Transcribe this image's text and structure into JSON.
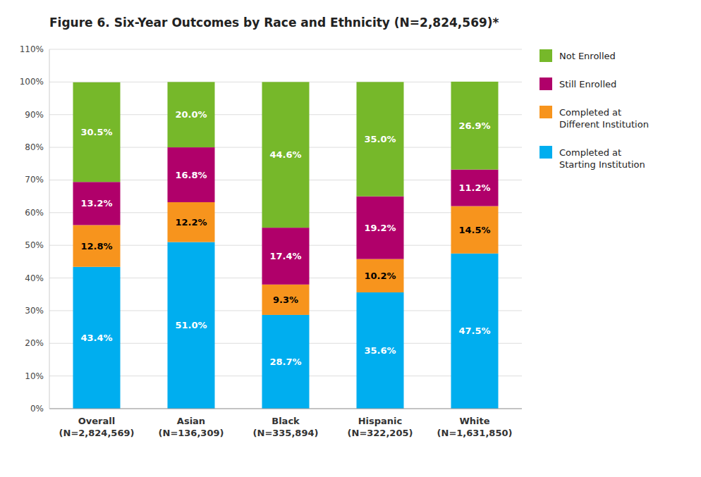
{
  "chart_data": {
    "type": "bar",
    "stacked": true,
    "title": "Figure 6. Six-Year Outcomes by Race and Ethnicity (N=2,824,569)*",
    "categories": [
      "Overall\n(N=2,824,569)",
      "Asian\n(N=136,309)",
      "Black\n(N=335,894)",
      "Hispanic\n(N=322,205)",
      "White\n(N=1,631,850)"
    ],
    "series": [
      {
        "name": "Completed at\nStarting Institution",
        "color": "#00AEEF",
        "values": [
          43.4,
          51.0,
          28.7,
          35.6,
          47.5
        ],
        "value_labels": [
          "43.4%",
          "51.0%",
          "28.7%",
          "35.6%",
          "47.5%"
        ]
      },
      {
        "name": "Completed at\nDifferent Institution",
        "color": "#F7941D",
        "values": [
          12.8,
          12.2,
          9.3,
          10.2,
          14.5
        ],
        "value_labels": [
          "12.8%",
          "12.2%",
          "9.3%",
          "10.2%",
          "14.5%"
        ]
      },
      {
        "name": "Still Enrolled",
        "color": "#B0006A",
        "values": [
          13.2,
          16.8,
          17.4,
          19.2,
          11.2
        ],
        "value_labels": [
          "13.2%",
          "16.8%",
          "17.4%",
          "19.2%",
          "11.2%"
        ]
      },
      {
        "name": "Not Enrolled",
        "color": "#76B82A",
        "values": [
          30.5,
          20.0,
          44.6,
          35.0,
          26.9
        ],
        "value_labels": [
          "30.5%",
          "20.0%",
          "44.6%",
          "35.0%",
          "26.9%"
        ]
      }
    ],
    "ylim": [
      0,
      110
    ],
    "yticks": [
      {
        "value": 0,
        "label": "0%"
      },
      {
        "value": 10,
        "label": "10%"
      },
      {
        "value": 20,
        "label": "20%"
      },
      {
        "value": 30,
        "label": "30%"
      },
      {
        "value": 40,
        "label": "40%"
      },
      {
        "value": 50,
        "label": "50%"
      },
      {
        "value": 60,
        "label": "60%"
      },
      {
        "value": 70,
        "label": "70%"
      },
      {
        "value": 80,
        "label": "80%"
      },
      {
        "value": 90,
        "label": "90%"
      },
      {
        "value": 100,
        "label": "100%"
      },
      {
        "value": 110,
        "label": "110%"
      }
    ],
    "grid": true,
    "data_labels": true,
    "legend": "right"
  }
}
